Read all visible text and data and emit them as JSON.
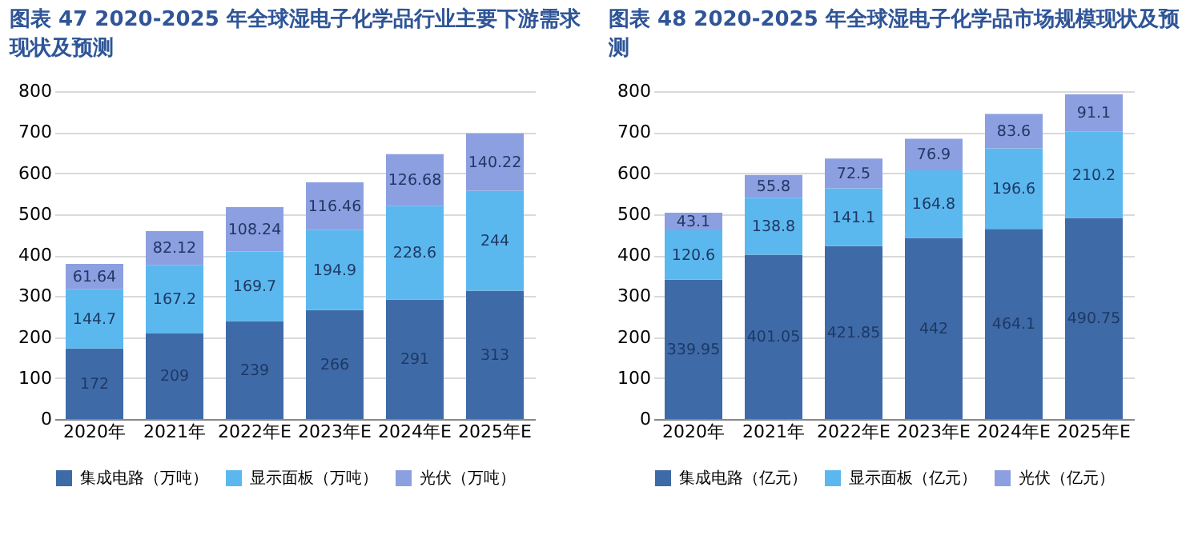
{
  "chart_data": [
    {
      "type": "bar",
      "title": "图表 47 2020-2025 年全球湿电子化学品行业主要下游需求现状及预测",
      "categories": [
        "2020年",
        "2021年",
        "2022年E",
        "2023年E",
        "2024年E",
        "2025年E"
      ],
      "stacked": true,
      "data_labels": true,
      "ylim": [
        0,
        800
      ],
      "yticks": [
        0,
        100,
        200,
        300,
        400,
        500,
        600,
        700,
        800
      ],
      "grid": "y",
      "legend": "bottom",
      "series": [
        {
          "name": "集成电路（万吨）",
          "color": "#3e6ba8",
          "values": [
            172,
            209,
            239,
            266,
            291,
            313
          ]
        },
        {
          "name": "显示面板（万吨）",
          "color": "#5bb8ee",
          "values": [
            144.7,
            167.2,
            169.7,
            194.9,
            228.6,
            244
          ]
        },
        {
          "name": "光伏（万吨）",
          "color": "#8c9fe0",
          "values": [
            61.64,
            82.12,
            108.24,
            116.46,
            126.68,
            140.22
          ]
        }
      ]
    },
    {
      "type": "bar",
      "title": "图表 48 2020-2025 年全球湿电子化学品市场规模现状及预测",
      "categories": [
        "2020年",
        "2021年",
        "2022年E",
        "2023年E",
        "2024年E",
        "2025年E"
      ],
      "stacked": true,
      "data_labels": true,
      "ylim": [
        0,
        800
      ],
      "yticks": [
        0,
        100,
        200,
        300,
        400,
        500,
        600,
        700,
        800
      ],
      "grid": "y",
      "legend": "bottom",
      "series": [
        {
          "name": "集成电路（亿元）",
          "color": "#3e6ba8",
          "values": [
            339.95,
            401.05,
            421.85,
            442,
            464.1,
            490.75
          ]
        },
        {
          "name": "显示面板（亿元）",
          "color": "#5bb8ee",
          "values": [
            120.6,
            138.8,
            141.1,
            164.8,
            196.6,
            210.2
          ]
        },
        {
          "name": "光伏（亿元）",
          "color": "#8c9fe0",
          "values": [
            43.1,
            55.8,
            72.5,
            76.9,
            83.6,
            91.1
          ]
        }
      ]
    }
  ]
}
